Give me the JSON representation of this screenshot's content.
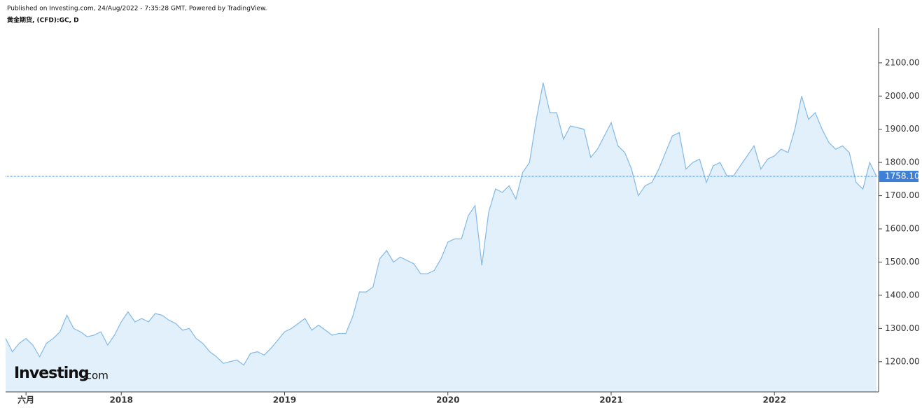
{
  "header": {
    "published": "Published on Investing.com, 24/Aug/2022 - 7:35:28 GMT, Powered by TradingView.",
    "symbol": "黄金期货, (CFD):GC, D"
  },
  "logo": {
    "brand": "Investing",
    "suffix": ".com"
  },
  "chart_data": {
    "type": "area",
    "color": "#89bde8",
    "fill": "#e1f0fa",
    "categories": [
      null,
      null,
      null,
      "六月",
      null,
      null,
      null,
      null,
      null,
      null,
      null,
      null,
      null,
      null,
      null,
      null,
      null,
      "2018",
      null,
      null,
      null,
      null,
      null,
      null,
      null,
      null,
      null,
      null,
      null,
      null,
      null,
      null,
      null,
      null,
      null,
      null,
      null,
      null,
      null,
      null,
      null,
      "2019",
      null,
      null,
      null,
      null,
      null,
      null,
      null,
      null,
      null,
      null,
      null,
      null,
      null,
      null,
      null,
      null,
      null,
      null,
      null,
      null,
      null,
      null,
      null,
      "2020",
      null,
      null,
      null,
      null,
      null,
      null,
      null,
      null,
      null,
      null,
      null,
      null,
      null,
      null,
      null,
      null,
      null,
      null,
      null,
      null,
      null,
      null,
      null,
      "2021",
      null,
      null,
      null,
      null,
      null,
      null,
      null,
      null,
      null,
      null,
      null,
      null,
      null,
      null,
      null,
      null,
      null,
      null,
      null,
      null,
      null,
      null,
      null,
      "2022",
      null,
      null,
      null,
      null,
      null,
      null,
      null,
      null,
      null,
      null,
      null,
      null,
      null,
      null,
      null
    ],
    "values": [
      1270,
      1230,
      1255,
      1270,
      1250,
      1215,
      1255,
      1270,
      1290,
      1340,
      1300,
      1290,
      1275,
      1280,
      1290,
      1250,
      1280,
      1320,
      1350,
      1320,
      1330,
      1320,
      1345,
      1340,
      1325,
      1315,
      1295,
      1300,
      1270,
      1255,
      1230,
      1215,
      1195,
      1200,
      1205,
      1190,
      1225,
      1230,
      1220,
      1240,
      1265,
      1290,
      1300,
      1315,
      1330,
      1295,
      1310,
      1295,
      1280,
      1285,
      1285,
      1335,
      1410,
      1410,
      1425,
      1510,
      1535,
      1500,
      1515,
      1505,
      1495,
      1465,
      1465,
      1475,
      1510,
      1560,
      1570,
      1570,
      1640,
      1670,
      1490,
      1650,
      1720,
      1710,
      1730,
      1690,
      1770,
      1800,
      1930,
      2040,
      1950,
      1950,
      1870,
      1910,
      1905,
      1900,
      1815,
      1840,
      1880,
      1920,
      1850,
      1830,
      1780,
      1700,
      1730,
      1740,
      1780,
      1830,
      1880,
      1890,
      1780,
      1800,
      1810,
      1740,
      1790,
      1800,
      1760,
      1760,
      1790,
      1820,
      1850,
      1780,
      1810,
      1820,
      1840,
      1830,
      1900,
      2000,
      1930,
      1950,
      1900,
      1860,
      1840,
      1850,
      1830,
      1740,
      1720,
      1800,
      1758.1
    ],
    "last_price": {
      "value": 1758.1,
      "label": "1758.10"
    },
    "ylim": [
      1109,
      2205
    ],
    "yticks": [
      {
        "value": 1200,
        "label": "1200.00"
      },
      {
        "value": 1300,
        "label": "1300.00"
      },
      {
        "value": 1400,
        "label": "1400.00"
      },
      {
        "value": 1500,
        "label": "1500.00"
      },
      {
        "value": 1600,
        "label": "1600.00"
      },
      {
        "value": 1700,
        "label": "1700.00"
      },
      {
        "value": 1800,
        "label": "1800.00"
      },
      {
        "value": 1900,
        "label": "1900.00"
      },
      {
        "value": 2000,
        "label": "2000.00"
      },
      {
        "value": 2100,
        "label": "2100.00"
      }
    ]
  }
}
